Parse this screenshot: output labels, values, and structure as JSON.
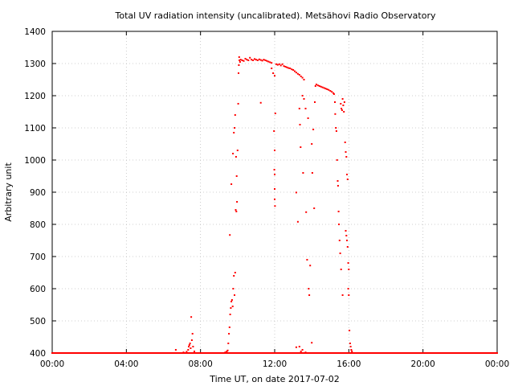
{
  "chart_data": {
    "type": "scatter",
    "title": "Total UV radiation intensity (uncalibrated). Metsähovi Radio Observatory",
    "xlabel": "Time UT, on date 2017-07-02",
    "ylabel": "Arbitrary unit",
    "xlim": [
      "00:00",
      "24:00"
    ],
    "ylim": [
      400,
      1400
    ],
    "x_ticks": [
      "00:00",
      "04:00",
      "08:00",
      "12:00",
      "16:00",
      "20:00",
      "00:00"
    ],
    "y_ticks": [
      "400",
      "500",
      "600",
      "700",
      "800",
      "900",
      "1000",
      "1100",
      "1200",
      "1300",
      "1400"
    ],
    "grid": true,
    "marker_color": "#ff0000",
    "series": [
      {
        "points": [
          [
            "00:00",
            400
          ],
          [
            "00:30",
            400
          ],
          [
            "01:00",
            400
          ],
          [
            "01:30",
            400
          ],
          [
            "02:00",
            400
          ],
          [
            "02:30",
            400
          ],
          [
            "03:00",
            400
          ],
          [
            "03:30",
            400
          ],
          [
            "04:00",
            400
          ],
          [
            "04:30",
            400
          ],
          [
            "05:00",
            400
          ],
          [
            "05:30",
            400
          ],
          [
            "06:00",
            400
          ],
          [
            "06:30",
            400
          ],
          [
            "06:40",
            410
          ],
          [
            "07:05",
            402
          ],
          [
            "07:15",
            404
          ],
          [
            "07:20",
            410
          ],
          [
            "07:22",
            420
          ],
          [
            "07:24",
            425
          ],
          [
            "07:26",
            430
          ],
          [
            "07:28",
            415
          ],
          [
            "07:30",
            512
          ],
          [
            "07:32",
            440
          ],
          [
            "07:34",
            460
          ],
          [
            "07:36",
            420
          ],
          [
            "07:40",
            405
          ],
          [
            "08:00",
            400
          ],
          [
            "08:30",
            400
          ],
          [
            "09:00",
            400
          ],
          [
            "09:20",
            402
          ],
          [
            "09:25",
            405
          ],
          [
            "09:28",
            408
          ],
          [
            "09:30",
            430
          ],
          [
            "09:32",
            460
          ],
          [
            "09:34",
            480
          ],
          [
            "09:36",
            520
          ],
          [
            "09:38",
            540
          ],
          [
            "09:40",
            560
          ],
          [
            "09:42",
            565
          ],
          [
            "09:44",
            545
          ],
          [
            "09:46",
            600
          ],
          [
            "09:48",
            640
          ],
          [
            "09:50",
            580
          ],
          [
            "09:52",
            650
          ],
          [
            "09:54",
            845
          ],
          [
            "09:56",
            840
          ],
          [
            "09:58",
            870
          ],
          [
            "09:35",
            767
          ],
          [
            "09:40",
            925
          ],
          [
            "09:45",
            1020
          ],
          [
            "09:48",
            1085
          ],
          [
            "09:50",
            1100
          ],
          [
            "09:52",
            1140
          ],
          [
            "09:55",
            1010
          ],
          [
            "09:57",
            950
          ],
          [
            "10:00",
            1030
          ],
          [
            "10:02",
            1175
          ],
          [
            "10:03",
            1270
          ],
          [
            "10:04",
            1295
          ],
          [
            "10:05",
            1320
          ],
          [
            "10:06",
            1310
          ],
          [
            "10:08",
            1305
          ],
          [
            "10:10",
            1312
          ],
          [
            "10:15",
            1310
          ],
          [
            "10:20",
            1308
          ],
          [
            "10:25",
            1315
          ],
          [
            "10:30",
            1312
          ],
          [
            "10:35",
            1310
          ],
          [
            "10:40",
            1318
          ],
          [
            "10:45",
            1312
          ],
          [
            "10:50",
            1310
          ],
          [
            "10:55",
            1314
          ],
          [
            "11:00",
            1312
          ],
          [
            "11:05",
            1310
          ],
          [
            "11:10",
            1313
          ],
          [
            "11:15",
            1311
          ],
          [
            "11:20",
            1309
          ],
          [
            "11:25",
            1312
          ],
          [
            "11:30",
            1310
          ],
          [
            "11:35",
            1308
          ],
          [
            "11:40",
            1306
          ],
          [
            "11:45",
            1304
          ],
          [
            "11:50",
            1302
          ],
          [
            "11:15",
            1178
          ],
          [
            "11:50",
            1285
          ],
          [
            "11:55",
            1270
          ],
          [
            "12:00",
            1262
          ],
          [
            "12:02",
            1145
          ],
          [
            "11:58",
            1090
          ],
          [
            "12:00",
            1030
          ],
          [
            "11:59",
            970
          ],
          [
            "12:00",
            955
          ],
          [
            "12:00",
            910
          ],
          [
            "12:00",
            878
          ],
          [
            "12:01",
            857
          ],
          [
            "12:05",
            1298
          ],
          [
            "12:10",
            1296
          ],
          [
            "12:15",
            1298
          ],
          [
            "12:20",
            1294
          ],
          [
            "12:25",
            1298
          ],
          [
            "12:30",
            1292
          ],
          [
            "12:35",
            1290
          ],
          [
            "12:40",
            1288
          ],
          [
            "12:45",
            1286
          ],
          [
            "12:50",
            1285
          ],
          [
            "12:55",
            1282
          ],
          [
            "13:00",
            1280
          ],
          [
            "13:05",
            1276
          ],
          [
            "13:10",
            1272
          ],
          [
            "13:15",
            1268
          ],
          [
            "13:20",
            1265
          ],
          [
            "13:25",
            1260
          ],
          [
            "13:30",
            1256
          ],
          [
            "13:35",
            1250
          ],
          [
            "13:10",
            899
          ],
          [
            "13:15",
            808
          ],
          [
            "13:20",
            1160
          ],
          [
            "13:22",
            1110
          ],
          [
            "13:24",
            1040
          ],
          [
            "13:30",
            1200
          ],
          [
            "13:32",
            960
          ],
          [
            "13:35",
            1190
          ],
          [
            "13:40",
            1160
          ],
          [
            "13:42",
            838
          ],
          [
            "13:45",
            690
          ],
          [
            "13:48",
            1130
          ],
          [
            "13:50",
            600
          ],
          [
            "13:52",
            580
          ],
          [
            "13:55",
            672
          ],
          [
            "14:00",
            1050
          ],
          [
            "14:02",
            960
          ],
          [
            "14:05",
            1095
          ],
          [
            "14:08",
            850
          ],
          [
            "14:10",
            1180
          ],
          [
            "14:12",
            1230
          ],
          [
            "13:10",
            418
          ],
          [
            "13:20",
            420
          ],
          [
            "13:25",
            405
          ],
          [
            "13:30",
            410
          ],
          [
            "13:35",
            400
          ],
          [
            "13:40",
            402
          ],
          [
            "14:00",
            432
          ],
          [
            "14:15",
            1235
          ],
          [
            "14:20",
            1232
          ],
          [
            "14:25",
            1230
          ],
          [
            "14:30",
            1228
          ],
          [
            "14:35",
            1226
          ],
          [
            "14:40",
            1224
          ],
          [
            "14:45",
            1222
          ],
          [
            "14:50",
            1220
          ],
          [
            "14:55",
            1218
          ],
          [
            "15:00",
            1215
          ],
          [
            "15:05",
            1212
          ],
          [
            "15:10",
            1208
          ],
          [
            "15:12",
            1205
          ],
          [
            "15:15",
            1180
          ],
          [
            "15:16",
            1143
          ],
          [
            "15:18",
            1100
          ],
          [
            "15:20",
            1090
          ],
          [
            "15:22",
            1000
          ],
          [
            "15:24",
            935
          ],
          [
            "15:25",
            920
          ],
          [
            "15:27",
            840
          ],
          [
            "15:28",
            800
          ],
          [
            "15:30",
            750
          ],
          [
            "15:32",
            710
          ],
          [
            "15:34",
            1175
          ],
          [
            "15:36",
            1160
          ],
          [
            "15:38",
            1155
          ],
          [
            "15:40",
            1190
          ],
          [
            "15:42",
            1170
          ],
          [
            "15:44",
            1150
          ],
          [
            "15:46",
            1180
          ],
          [
            "15:48",
            1055
          ],
          [
            "15:50",
            1025
          ],
          [
            "15:52",
            1010
          ],
          [
            "15:54",
            955
          ],
          [
            "15:56",
            940
          ],
          [
            "15:50",
            780
          ],
          [
            "15:52",
            765
          ],
          [
            "15:54",
            750
          ],
          [
            "15:56",
            730
          ],
          [
            "15:58",
            680
          ],
          [
            "16:00",
            660
          ],
          [
            "15:58",
            600
          ],
          [
            "16:00",
            580
          ],
          [
            "16:02",
            470
          ],
          [
            "16:04",
            430
          ],
          [
            "16:06",
            420
          ],
          [
            "16:08",
            410
          ],
          [
            "16:10",
            405
          ],
          [
            "15:35",
            660
          ],
          [
            "15:40",
            580
          ],
          [
            "16:20",
            400
          ],
          [
            "16:40",
            400
          ],
          [
            "17:00",
            400
          ],
          [
            "17:30",
            400
          ],
          [
            "18:00",
            400
          ],
          [
            "18:30",
            400
          ],
          [
            "19:00",
            400
          ],
          [
            "19:30",
            400
          ],
          [
            "20:00",
            400
          ],
          [
            "20:30",
            400
          ],
          [
            "21:00",
            400
          ],
          [
            "21:30",
            400
          ],
          [
            "22:00",
            400
          ],
          [
            "22:30",
            400
          ],
          [
            "23:00",
            400
          ],
          [
            "23:30",
            400
          ],
          [
            "23:59",
            400
          ]
        ]
      }
    ]
  }
}
